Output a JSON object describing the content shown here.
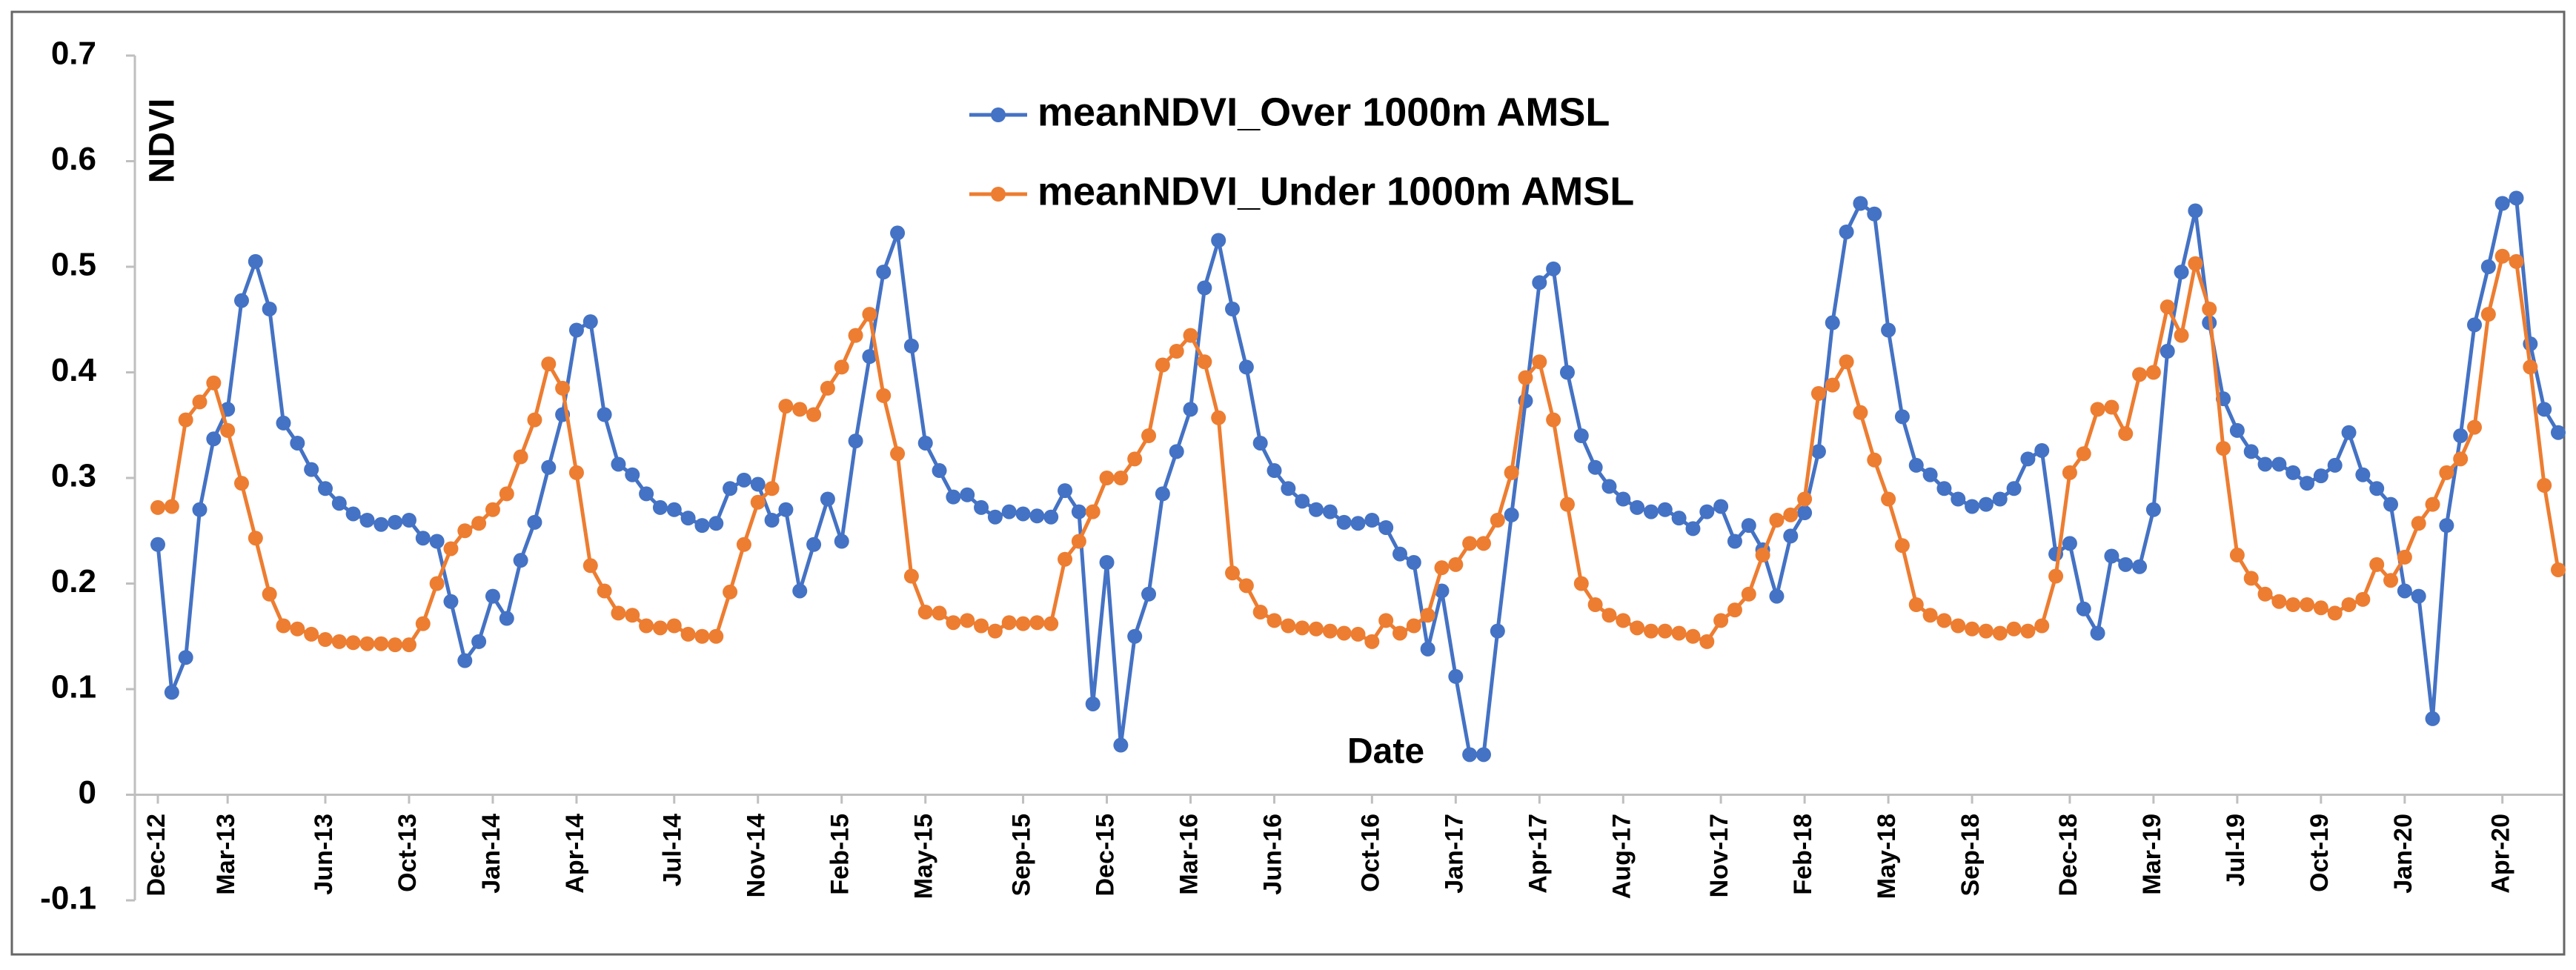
{
  "chart_data": {
    "type": "line",
    "x_label": "Date",
    "y_label": "NDVI",
    "categories": [
      "Dec-12",
      null,
      null,
      null,
      null,
      "Mar-13",
      null,
      null,
      null,
      null,
      null,
      null,
      "Jun-13",
      null,
      null,
      null,
      null,
      null,
      "Oct-13",
      null,
      null,
      null,
      null,
      null,
      "Jan-14",
      null,
      null,
      null,
      null,
      null,
      "Apr-14",
      null,
      null,
      null,
      null,
      null,
      null,
      "Jul-14",
      null,
      null,
      null,
      null,
      null,
      "Nov-14",
      null,
      null,
      null,
      null,
      null,
      "Feb-15",
      null,
      null,
      null,
      null,
      null,
      "May-15",
      null,
      null,
      null,
      null,
      null,
      null,
      "Sep-15",
      null,
      null,
      null,
      null,
      null,
      "Dec-15",
      null,
      null,
      null,
      null,
      null,
      "Mar-16",
      null,
      null,
      null,
      null,
      null,
      "Jun-16",
      null,
      null,
      null,
      null,
      null,
      null,
      "Oct-16",
      null,
      null,
      null,
      null,
      null,
      "Jan-17",
      null,
      null,
      null,
      null,
      null,
      "Apr-17",
      null,
      null,
      null,
      null,
      null,
      "Aug-17",
      null,
      null,
      null,
      null,
      null,
      null,
      "Nov-17",
      null,
      null,
      null,
      null,
      null,
      "Feb-18",
      null,
      null,
      null,
      null,
      null,
      "May-18",
      null,
      null,
      null,
      null,
      null,
      "Sep-18",
      null,
      null,
      null,
      null,
      null,
      null,
      "Dec-18",
      null,
      null,
      null,
      null,
      null,
      "Mar-19",
      null,
      null,
      null,
      null,
      null,
      "Jul-19",
      null,
      null,
      null,
      null,
      null,
      "Oct-19",
      null,
      null,
      null,
      null,
      null,
      "Jan-20",
      null,
      null,
      null,
      null,
      null,
      null,
      "Apr-20",
      null,
      null,
      null,
      null
    ],
    "series": [
      {
        "name": "meanNDVI_Over 1000m AMSL",
        "color": "#4472c4",
        "values": [
          0.237,
          0.097,
          0.13,
          0.27,
          0.337,
          0.365,
          0.468,
          0.505,
          0.46,
          0.352,
          0.333,
          0.308,
          0.29,
          0.276,
          0.266,
          0.26,
          0.256,
          0.258,
          0.26,
          0.243,
          0.24,
          0.183,
          0.127,
          0.145,
          0.188,
          0.167,
          0.222,
          0.258,
          0.31,
          0.36,
          0.44,
          0.448,
          0.36,
          0.313,
          0.303,
          0.285,
          0.272,
          0.27,
          0.262,
          0.255,
          0.257,
          0.29,
          0.298,
          0.294,
          0.26,
          0.27,
          0.193,
          0.237,
          0.28,
          0.24,
          0.335,
          0.415,
          0.495,
          0.532,
          0.425,
          0.333,
          0.307,
          0.282,
          0.284,
          0.272,
          0.263,
          0.268,
          0.266,
          0.264,
          0.263,
          0.288,
          0.268,
          0.086,
          0.22,
          0.047,
          0.15,
          0.19,
          0.285,
          0.325,
          0.365,
          0.48,
          0.525,
          0.46,
          0.405,
          0.333,
          0.307,
          0.29,
          0.278,
          0.27,
          0.268,
          0.258,
          0.257,
          0.26,
          0.253,
          0.228,
          0.22,
          0.138,
          0.193,
          0.112,
          0.038,
          0.038,
          0.155,
          0.265,
          0.373,
          0.485,
          0.498,
          0.4,
          0.34,
          0.31,
          0.292,
          0.28,
          0.272,
          0.268,
          0.27,
          0.262,
          0.252,
          0.268,
          0.273,
          0.24,
          0.255,
          0.232,
          0.188,
          0.245,
          0.267,
          0.325,
          0.447,
          0.533,
          0.56,
          0.55,
          0.44,
          0.358,
          0.312,
          0.303,
          0.29,
          0.28,
          0.273,
          0.275,
          0.28,
          0.29,
          0.318,
          0.326,
          0.228,
          0.238,
          0.176,
          0.153,
          0.226,
          0.218,
          0.216,
          0.27,
          0.42,
          0.495,
          0.553,
          0.447,
          0.375,
          0.345,
          0.325,
          0.313,
          0.313,
          0.305,
          0.295,
          0.302,
          0.312,
          0.343,
          0.303,
          0.29,
          0.275,
          0.193,
          0.188,
          0.072,
          0.255,
          0.34,
          0.445,
          0.5,
          0.56,
          0.565,
          0.427,
          0.365,
          0.343
        ]
      },
      {
        "name": "meanNDVI_Under 1000m AMSL",
        "color": "#ed7d31",
        "values": [
          0.272,
          0.273,
          0.355,
          0.372,
          0.39,
          0.345,
          0.295,
          0.243,
          0.19,
          0.16,
          0.157,
          0.152,
          0.147,
          0.145,
          0.144,
          0.143,
          0.143,
          0.142,
          0.142,
          0.162,
          0.2,
          0.233,
          0.25,
          0.257,
          0.27,
          0.285,
          0.32,
          0.355,
          0.408,
          0.385,
          0.305,
          0.217,
          0.193,
          0.172,
          0.17,
          0.16,
          0.158,
          0.16,
          0.152,
          0.15,
          0.15,
          0.192,
          0.237,
          0.277,
          0.29,
          0.368,
          0.365,
          0.36,
          0.385,
          0.405,
          0.435,
          0.455,
          0.378,
          0.323,
          0.207,
          0.173,
          0.172,
          0.163,
          0.165,
          0.16,
          0.155,
          0.163,
          0.162,
          0.163,
          0.162,
          0.223,
          0.24,
          0.268,
          0.3,
          0.3,
          0.318,
          0.34,
          0.407,
          0.42,
          0.435,
          0.41,
          0.357,
          0.21,
          0.198,
          0.173,
          0.165,
          0.16,
          0.158,
          0.157,
          0.155,
          0.153,
          0.152,
          0.145,
          0.165,
          0.153,
          0.16,
          0.17,
          0.215,
          0.218,
          0.238,
          0.238,
          0.26,
          0.305,
          0.395,
          0.41,
          0.355,
          0.275,
          0.2,
          0.18,
          0.17,
          0.165,
          0.158,
          0.155,
          0.155,
          0.153,
          0.15,
          0.145,
          0.165,
          0.175,
          0.19,
          0.227,
          0.26,
          0.265,
          0.28,
          0.38,
          0.388,
          0.41,
          0.362,
          0.317,
          0.28,
          0.236,
          0.18,
          0.17,
          0.165,
          0.16,
          0.157,
          0.155,
          0.153,
          0.157,
          0.155,
          0.16,
          0.207,
          0.305,
          0.323,
          0.365,
          0.367,
          0.342,
          0.398,
          0.4,
          0.462,
          0.435,
          0.503,
          0.46,
          0.328,
          0.227,
          0.205,
          0.19,
          0.183,
          0.18,
          0.18,
          0.177,
          0.172,
          0.18,
          0.185,
          0.218,
          0.203,
          0.225,
          0.257,
          0.275,
          0.305,
          0.318,
          0.348,
          0.455,
          0.51,
          0.505,
          0.405,
          0.293,
          0.213
        ]
      }
    ],
    "ylim": [
      -0.1,
      0.7
    ],
    "yticks": [
      -0.1,
      0,
      0.1,
      0.2,
      0.3,
      0.4,
      0.5,
      0.6,
      0.7
    ],
    "grid": false,
    "legend": "top"
  }
}
